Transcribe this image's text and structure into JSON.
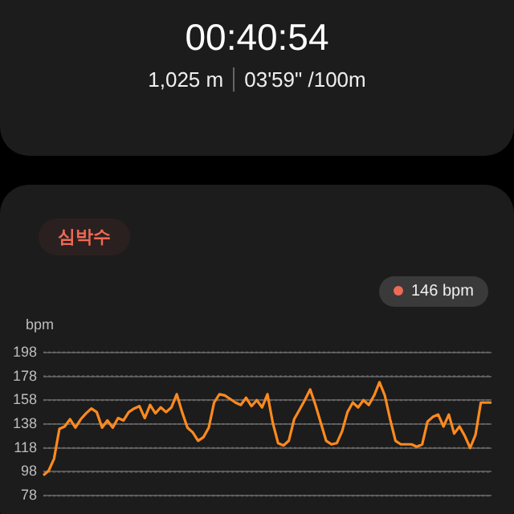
{
  "chart_data": {
    "type": "line",
    "title": "심박수",
    "ylabel": "bpm",
    "annotations": [
      "00:40:54",
      "1,025 m",
      "03'59\" /100m",
      "146 bpm"
    ],
    "categories": [
      null,
      null,
      null,
      null,
      null,
      null,
      null,
      null,
      null,
      null,
      null,
      null,
      null,
      null,
      null,
      null,
      null,
      null,
      null,
      null,
      null,
      null,
      null,
      null,
      null,
      null,
      null,
      null,
      null,
      null,
      null,
      null,
      null,
      null,
      null,
      null,
      null,
      null,
      null,
      null,
      null,
      null,
      null,
      null,
      null,
      null,
      null,
      null,
      null,
      null,
      null,
      null,
      null,
      null,
      null,
      null,
      null,
      null,
      null,
      null,
      null,
      null,
      null,
      null,
      null,
      null,
      null,
      null,
      null,
      null,
      null,
      null,
      null,
      null,
      null,
      null,
      null,
      null,
      null,
      null,
      null,
      null,
      null,
      null,
      null
    ],
    "series": [
      {
        "color": "#ff8a1e",
        "values": [
          95,
          99,
          109,
          134,
          136,
          142,
          135,
          142,
          147,
          151,
          148,
          135,
          141,
          135,
          143,
          141,
          148,
          151,
          153,
          143,
          154,
          147,
          152,
          148,
          152,
          163,
          148,
          135,
          131,
          124,
          127,
          135,
          156,
          163,
          162,
          159,
          156,
          154,
          160,
          153,
          158,
          152,
          163,
          139,
          122,
          120,
          124,
          142,
          150,
          158,
          167,
          154,
          139,
          124,
          121,
          122,
          132,
          148,
          156,
          152,
          158,
          154,
          162,
          173,
          162,
          142,
          124,
          121,
          121,
          121,
          119,
          121,
          140,
          144,
          146,
          136,
          146,
          130,
          136,
          128,
          118,
          129,
          156,
          156,
          156
        ]
      }
    ],
    "ylim": [
      78,
      198
    ],
    "yticks": [
      78,
      98,
      118,
      138,
      158,
      178,
      198
    ],
    "grid": "y",
    "tick_labels": "y",
    "marker": "none",
    "line_style": "solid",
    "legend": false
  }
}
